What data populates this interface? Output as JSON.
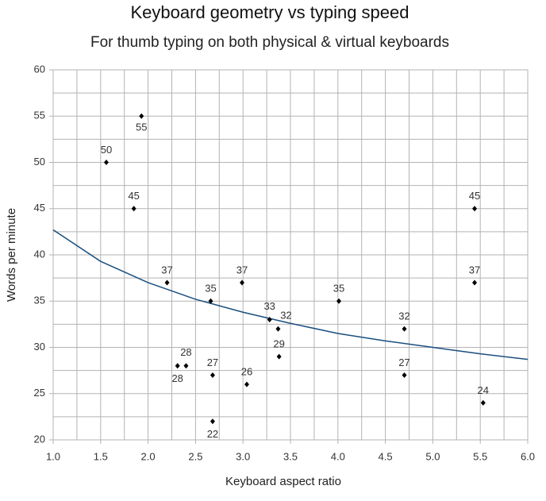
{
  "chart_data": {
    "type": "scatter",
    "title": "Keyboard geometry vs typing speed",
    "subtitle": "For thumb typing on both physical & virtual keyboards",
    "xlabel": "Keyboard aspect ratio",
    "ylabel": "Words per minute",
    "x": [
      1.93,
      1.56,
      1.85,
      2.2,
      2.66,
      2.99,
      2.31,
      2.4,
      2.68,
      2.68,
      3.04,
      3.28,
      3.37,
      3.38,
      4.01,
      4.7,
      4.7,
      5.44,
      5.44,
      5.53
    ],
    "values": [
      55,
      50,
      45,
      37,
      35,
      37,
      28,
      28,
      27,
      22,
      26,
      33,
      32,
      29,
      35,
      32,
      27,
      45,
      37,
      24
    ],
    "color": "#000000",
    "trendline": {
      "color": "#1a4f7f",
      "x": [
        1,
        1.5,
        2,
        2.5,
        3,
        3.5,
        4,
        4.5,
        5,
        5.5,
        6
      ],
      "values": [
        42.7,
        39.3,
        37.0,
        35.2,
        33.8,
        32.6,
        31.5,
        30.7,
        30.0,
        29.3,
        28.7
      ]
    },
    "xlim": [
      1,
      6
    ],
    "ylim": [
      20,
      60
    ],
    "xticks": [
      {
        "value": 1,
        "label": "1.0"
      },
      1.5,
      {
        "value": 2,
        "label": "2.0"
      },
      2.5,
      {
        "value": 3,
        "label": "3.0"
      },
      3.5,
      {
        "value": 4,
        "label": "4.0"
      },
      4.5,
      {
        "value": 5,
        "label": "5.0"
      },
      5.5,
      {
        "value": 6,
        "label": "6.0"
      }
    ],
    "yticks": [
      20,
      25,
      30,
      35,
      40,
      45,
      50,
      55,
      60
    ],
    "grid": true,
    "minor_grid": true
  }
}
